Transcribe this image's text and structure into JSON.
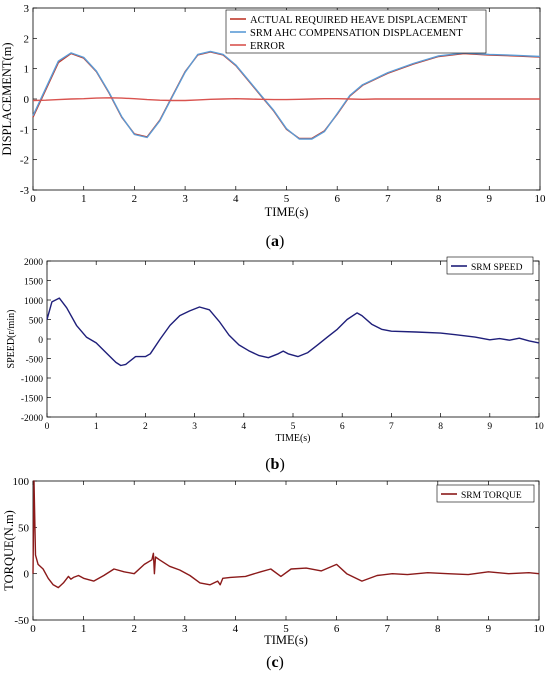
{
  "chart_data": [
    {
      "type": "line",
      "panel_label": "(a)",
      "panel_letter": "a",
      "xlabel": "TIME(s)",
      "ylabel": "DISPLACEMENT(m)",
      "xlim": [
        0,
        10
      ],
      "ylim": [
        -3,
        3
      ],
      "x_ticks": [
        0,
        1,
        2,
        3,
        4,
        5,
        6,
        7,
        8,
        9,
        10
      ],
      "y_ticks": [
        -3,
        -2,
        -1,
        0,
        1,
        2,
        3
      ],
      "grid": false,
      "legend_position": "top-right",
      "x": [
        0,
        0.25,
        0.5,
        0.75,
        1.0,
        1.25,
        1.5,
        1.75,
        2.0,
        2.25,
        2.5,
        2.75,
        3.0,
        3.25,
        3.5,
        3.75,
        4.0,
        4.25,
        4.5,
        4.75,
        5.0,
        5.25,
        5.5,
        5.75,
        6.0,
        6.25,
        6.5,
        6.75,
        7.0,
        7.5,
        8.0,
        8.5,
        9.0,
        9.5,
        10.0
      ],
      "series": [
        {
          "name": "ACTUAL REQUIRED HEAVE DISPLACEMENT",
          "color": "#c0392b",
          "values": [
            -0.6,
            0.3,
            1.2,
            1.5,
            1.35,
            0.9,
            0.2,
            -0.6,
            -1.15,
            -1.25,
            -0.7,
            0.1,
            0.9,
            1.45,
            1.55,
            1.45,
            1.1,
            0.6,
            0.1,
            -0.4,
            -1.0,
            -1.3,
            -1.3,
            -1.05,
            -0.5,
            0.1,
            0.45,
            0.65,
            0.85,
            1.15,
            1.4,
            1.5,
            1.45,
            1.42,
            1.38
          ]
        },
        {
          "name": "SRM AHC COMPENSATION DISPLACEMENT",
          "color": "#5b9bd5",
          "values": [
            -0.55,
            0.35,
            1.25,
            1.52,
            1.37,
            0.92,
            0.22,
            -0.58,
            -1.17,
            -1.27,
            -0.72,
            0.08,
            0.88,
            1.47,
            1.57,
            1.47,
            1.12,
            0.62,
            0.12,
            -0.38,
            -0.98,
            -1.32,
            -1.32,
            -1.07,
            -0.48,
            0.12,
            0.47,
            0.67,
            0.87,
            1.17,
            1.42,
            1.52,
            1.47,
            1.44,
            1.4
          ]
        },
        {
          "name": "ERROR",
          "color": "#d9534f",
          "values": [
            -0.05,
            -0.04,
            -0.02,
            0.0,
            0.01,
            0.03,
            0.04,
            0.03,
            0.01,
            -0.02,
            -0.04,
            -0.05,
            -0.05,
            -0.03,
            -0.01,
            0.0,
            0.01,
            0.0,
            -0.01,
            -0.02,
            -0.02,
            -0.01,
            0.0,
            0.01,
            0.01,
            0.0,
            -0.01,
            0.0,
            0.0,
            0.0,
            0.0,
            0.0,
            0.0,
            0.0,
            0.0
          ]
        }
      ]
    },
    {
      "type": "line",
      "panel_label": "(b)",
      "panel_letter": "b",
      "xlabel": "TIME(s)",
      "ylabel": "SPEED(r/min)",
      "xlim": [
        0,
        10
      ],
      "ylim": [
        -2000,
        2000
      ],
      "x_ticks": [
        0,
        1,
        2,
        3,
        4,
        5,
        6,
        7,
        8,
        9,
        10
      ],
      "y_ticks": [
        -2000,
        -1500,
        -1000,
        -500,
        0,
        500,
        1000,
        1500,
        2000
      ],
      "grid": false,
      "legend_position": "top-right",
      "x": [
        0,
        0.1,
        0.25,
        0.4,
        0.6,
        0.8,
        1.0,
        1.2,
        1.4,
        1.5,
        1.6,
        1.8,
        2.0,
        2.1,
        2.3,
        2.5,
        2.7,
        2.9,
        3.1,
        3.3,
        3.5,
        3.7,
        3.9,
        4.1,
        4.3,
        4.5,
        4.7,
        4.8,
        4.9,
        5.1,
        5.3,
        5.5,
        5.7,
        5.9,
        6.1,
        6.3,
        6.4,
        6.6,
        6.8,
        7.0,
        7.5,
        8.0,
        8.3,
        8.7,
        9.0,
        9.2,
        9.4,
        9.6,
        9.8,
        10.0
      ],
      "series": [
        {
          "name": "SRM SPEED",
          "color": "#1f1f7a",
          "values": [
            500,
            950,
            1050,
            800,
            350,
            50,
            -100,
            -350,
            -600,
            -680,
            -650,
            -450,
            -450,
            -380,
            0,
            350,
            600,
            720,
            820,
            750,
            450,
            100,
            -150,
            -300,
            -420,
            -480,
            -380,
            -310,
            -380,
            -450,
            -350,
            -150,
            50,
            250,
            500,
            670,
            600,
            380,
            250,
            200,
            180,
            150,
            110,
            50,
            -20,
            10,
            -30,
            20,
            -50,
            -100
          ]
        }
      ]
    },
    {
      "type": "line",
      "panel_label": "(c)",
      "panel_letter": "c",
      "xlabel": "TIME(s)",
      "ylabel": "TORQUE(N.m)",
      "xlim": [
        0,
        10
      ],
      "ylim": [
        -50,
        100
      ],
      "x_ticks": [
        0,
        1,
        2,
        3,
        4,
        5,
        6,
        7,
        8,
        9,
        10
      ],
      "y_ticks": [
        -50,
        0,
        50,
        100
      ],
      "grid": false,
      "legend_position": "top-right",
      "x": [
        0,
        0.02,
        0.05,
        0.1,
        0.2,
        0.3,
        0.4,
        0.5,
        0.6,
        0.7,
        0.75,
        0.8,
        0.9,
        1.0,
        1.2,
        1.4,
        1.6,
        1.8,
        2.0,
        2.2,
        2.35,
        2.38,
        2.4,
        2.42,
        2.5,
        2.7,
        2.9,
        3.1,
        3.3,
        3.5,
        3.65,
        3.7,
        3.75,
        3.9,
        4.2,
        4.5,
        4.7,
        4.9,
        5.1,
        5.4,
        5.7,
        6.0,
        6.2,
        6.5,
        6.8,
        7.1,
        7.4,
        7.8,
        8.2,
        8.6,
        9.0,
        9.4,
        9.8,
        10.0
      ],
      "series": [
        {
          "name": "SRM TORQUE",
          "color": "#8b1a1a",
          "values": [
            0,
            100,
            20,
            10,
            5,
            -5,
            -12,
            -15,
            -10,
            -3,
            -6,
            -4,
            -2,
            -5,
            -8,
            -2,
            5,
            2,
            0,
            10,
            15,
            22,
            0,
            18,
            15,
            8,
            4,
            -2,
            -10,
            -12,
            -8,
            -12,
            -5,
            -4,
            -3,
            2,
            5,
            -3,
            5,
            6,
            3,
            10,
            0,
            -8,
            -2,
            0,
            -1,
            1,
            0,
            -1,
            2,
            0,
            1,
            0
          ]
        }
      ]
    }
  ]
}
